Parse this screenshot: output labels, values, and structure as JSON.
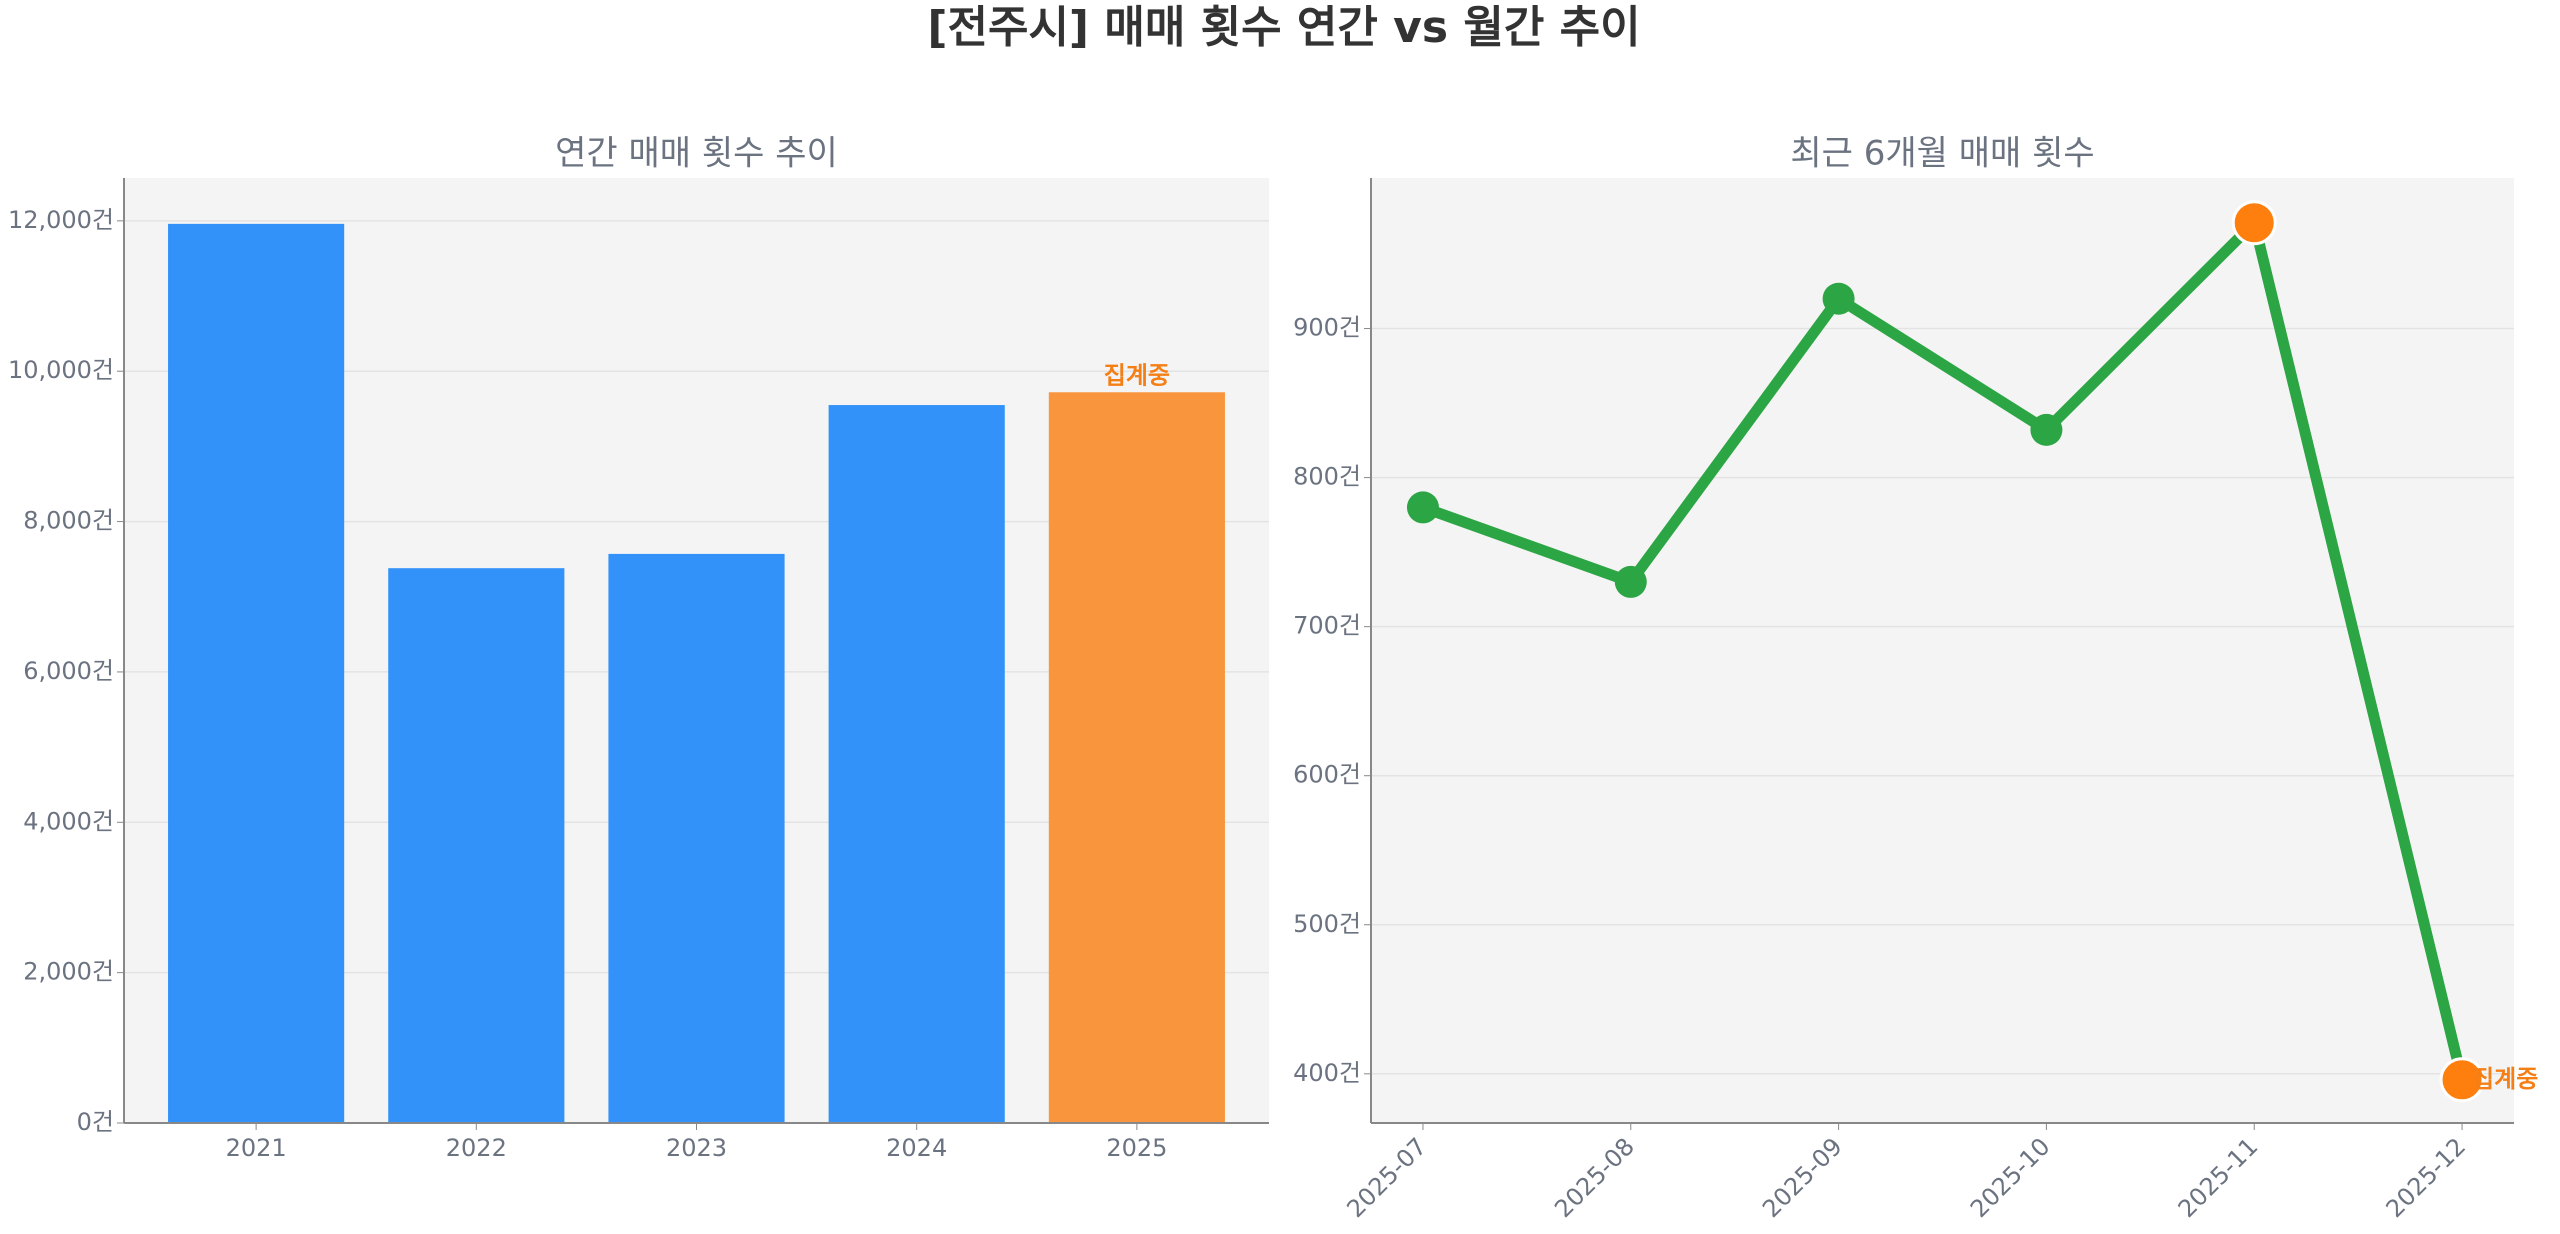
{
  "title": "[전주시] 매매 횟수 연간 vs 월간 추이",
  "chart_data": [
    {
      "type": "bar",
      "title": "연간 매매 횟수 추이",
      "categories": [
        "2021",
        "2022",
        "2023",
        "2024",
        "2025"
      ],
      "values": [
        11960,
        7380,
        7570,
        9550,
        9720
      ],
      "colors": [
        "#3292f9",
        "#3292f9",
        "#3292f9",
        "#3292f9",
        "#f9963d"
      ],
      "annotation": "집계중",
      "annotation_color": "#f57f17",
      "ylim": [
        0,
        12570
      ],
      "yticks": [
        {
          "value": 0,
          "label": "0건"
        },
        {
          "value": 2000,
          "label": "2,000건"
        },
        {
          "value": 4000,
          "label": "4,000건"
        },
        {
          "value": 6000,
          "label": "6,000건"
        },
        {
          "value": 8000,
          "label": "8,000건"
        },
        {
          "value": 10000,
          "label": "10,000건"
        },
        {
          "value": 12000,
          "label": "12,000건"
        }
      ],
      "grid": true
    },
    {
      "type": "line",
      "title": "최근 6개월 매매 횟수",
      "categories": [
        "2025-07",
        "2025-08",
        "2025-09",
        "2025-10",
        "2025-11",
        "2025-12"
      ],
      "values": [
        780,
        730,
        920,
        832,
        971,
        396
      ],
      "color": "#2ca544",
      "marker_colors": [
        "#2ca544",
        "#2ca544",
        "#2ca544",
        "#2ca544",
        "#ff7f0e",
        "#ff7f0e"
      ],
      "annotation": "집계중",
      "annotation_color": "#f57f17",
      "ylim": [
        367,
        1001
      ],
      "yticks": [
        {
          "value": 400,
          "label": "400건"
        },
        {
          "value": 500,
          "label": "500건"
        },
        {
          "value": 600,
          "label": "600건"
        },
        {
          "value": 700,
          "label": "700건"
        },
        {
          "value": 800,
          "label": "800건"
        },
        {
          "value": 900,
          "label": "900건"
        }
      ],
      "grid": true
    }
  ]
}
